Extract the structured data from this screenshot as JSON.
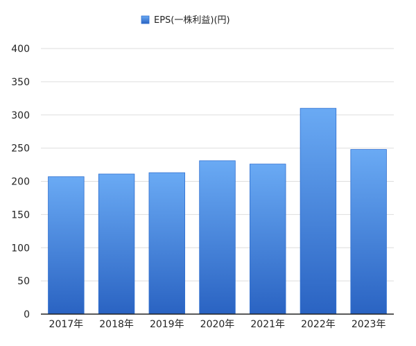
{
  "chart_data": {
    "type": "bar",
    "title": "",
    "xlabel": "",
    "ylabel": "",
    "categories": [
      "2017年",
      "2018年",
      "2019年",
      "2020年",
      "2021年",
      "2022年",
      "2023年"
    ],
    "series": [
      {
        "name": "EPS(一株利益)(円)",
        "values": [
          207,
          211,
          213,
          231,
          226,
          310,
          248
        ]
      }
    ],
    "ylim": [
      0,
      400
    ],
    "yticks": [
      0,
      50,
      100,
      150,
      200,
      250,
      300,
      350,
      400
    ],
    "grid": true,
    "legend_position": "top-center",
    "colors": {
      "bar_top": "#6aaaf4",
      "bar_bottom": "#2a63c2",
      "bar_edge": "#2f6fd0",
      "grid": "#dddddd",
      "axis": "#222222"
    }
  }
}
